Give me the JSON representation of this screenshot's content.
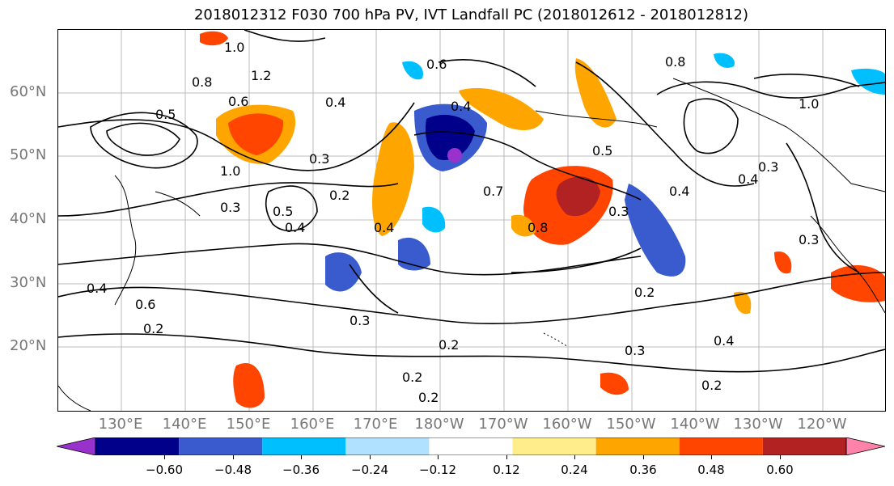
{
  "title": "2018012312 F030 700 hPa PV, IVT Landfall PC (2018012612 - 2018012812)",
  "lat_labels": [
    "60°N",
    "50°N",
    "40°N",
    "30°N",
    "20°N"
  ],
  "lon_labels": [
    "130°E",
    "140°E",
    "150°E",
    "160°E",
    "170°E",
    "180°W",
    "170°W",
    "160°W",
    "150°W",
    "140°W",
    "130°W",
    "120°W"
  ],
  "colorbar": {
    "ticks": [
      "−0.60",
      "−0.48",
      "−0.36",
      "−0.24",
      "−0.12",
      "0.12",
      "0.24",
      "0.36",
      "0.48",
      "0.60"
    ],
    "colors": [
      "#9932cc",
      "#00008b",
      "#3a5bcd",
      "#00bfff",
      "#b0e2ff",
      "#ffffff",
      "#ffec8b",
      "#ffa500",
      "#ff4500",
      "#b22222",
      "#ff82ab"
    ]
  },
  "contour_labels": [
    "1.0",
    "1.2",
    "0.8",
    "0.6",
    "0.5",
    "0.4",
    "0.3",
    "0.2",
    "0.7"
  ]
}
